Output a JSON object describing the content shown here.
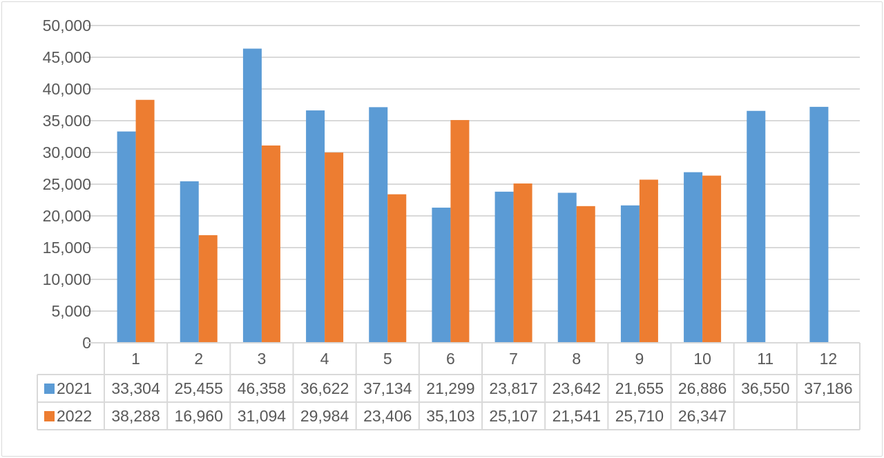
{
  "chart_data": {
    "type": "bar",
    "categories": [
      "1",
      "2",
      "3",
      "4",
      "5",
      "6",
      "7",
      "8",
      "9",
      "10",
      "11",
      "12"
    ],
    "series": [
      {
        "name": "2021",
        "color": "#5B9BD5",
        "values": [
          33304,
          25455,
          46358,
          36622,
          37134,
          21299,
          23817,
          23642,
          21655,
          26886,
          36550,
          37186
        ],
        "labels": [
          "33,304",
          "25,455",
          "46,358",
          "36,622",
          "37,134",
          "21,299",
          "23,817",
          "23,642",
          "21,655",
          "26,886",
          "36,550",
          "37,186"
        ]
      },
      {
        "name": "2022",
        "color": "#ED7D31",
        "values": [
          38288,
          16960,
          31094,
          29984,
          23406,
          35103,
          25107,
          21541,
          25710,
          26347,
          null,
          null
        ],
        "labels": [
          "38,288",
          "16,960",
          "31,094",
          "29,984",
          "23,406",
          "35,103",
          "25,107",
          "21,541",
          "25,710",
          "26,347",
          "",
          ""
        ]
      }
    ],
    "y_ticks": [
      "0",
      "5,000",
      "10,000",
      "15,000",
      "20,000",
      "25,000",
      "30,000",
      "35,000",
      "40,000",
      "45,000",
      "50,000"
    ],
    "ylim": [
      0,
      50000
    ],
    "grid": true,
    "legend": "data-table",
    "gridline_color": "#d9d9d9"
  }
}
